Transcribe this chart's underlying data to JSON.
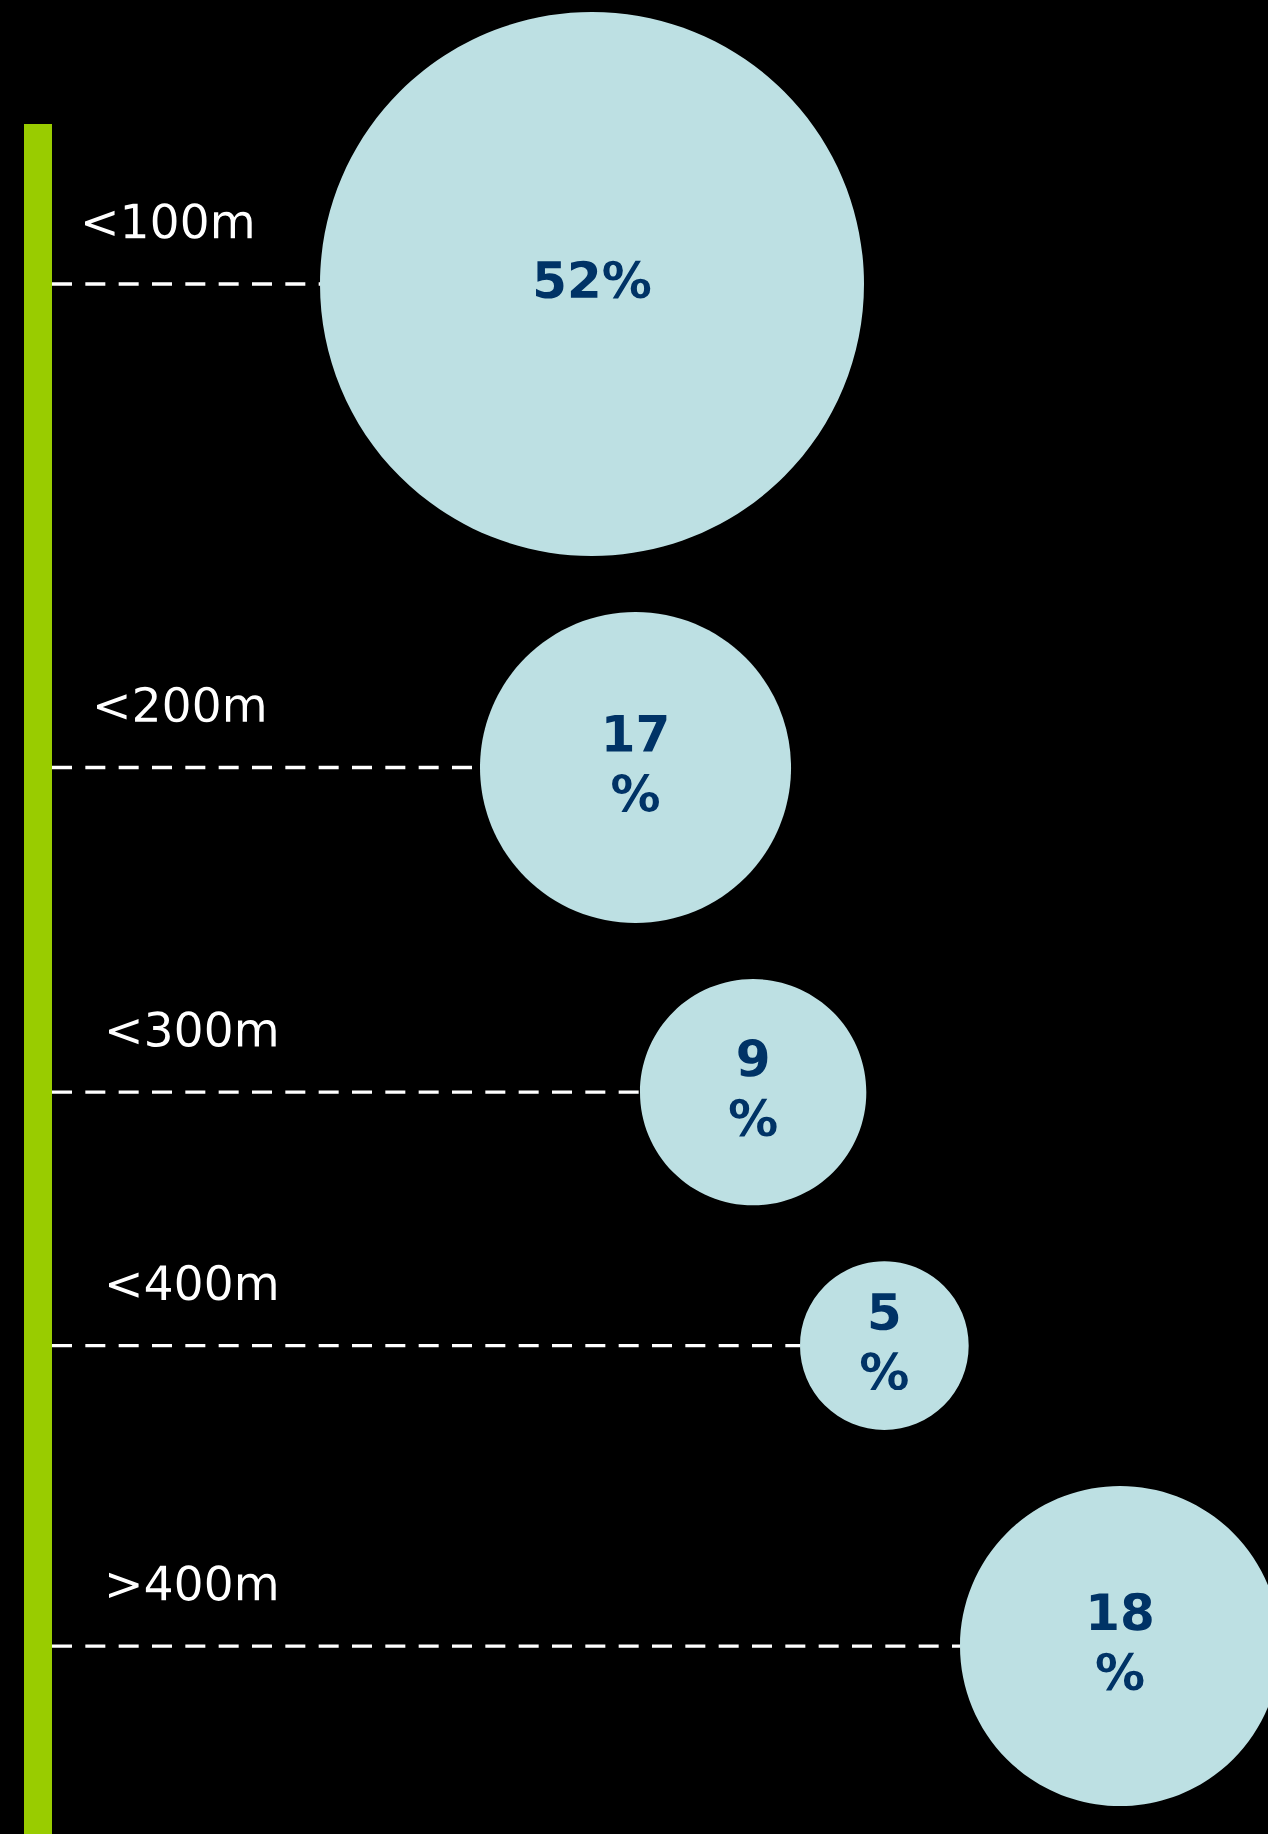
{
  "chart_data": {
    "type": "other",
    "categories": [
      "<100m",
      "<200m",
      "<300m",
      "<400m",
      ">400m"
    ],
    "values": [
      52,
      17,
      9,
      5,
      18
    ],
    "value_labels": [
      "52%",
      "17\n%",
      "9\n%",
      "5\n%",
      "18\n%"
    ],
    "color": "#bde0e3"
  }
}
